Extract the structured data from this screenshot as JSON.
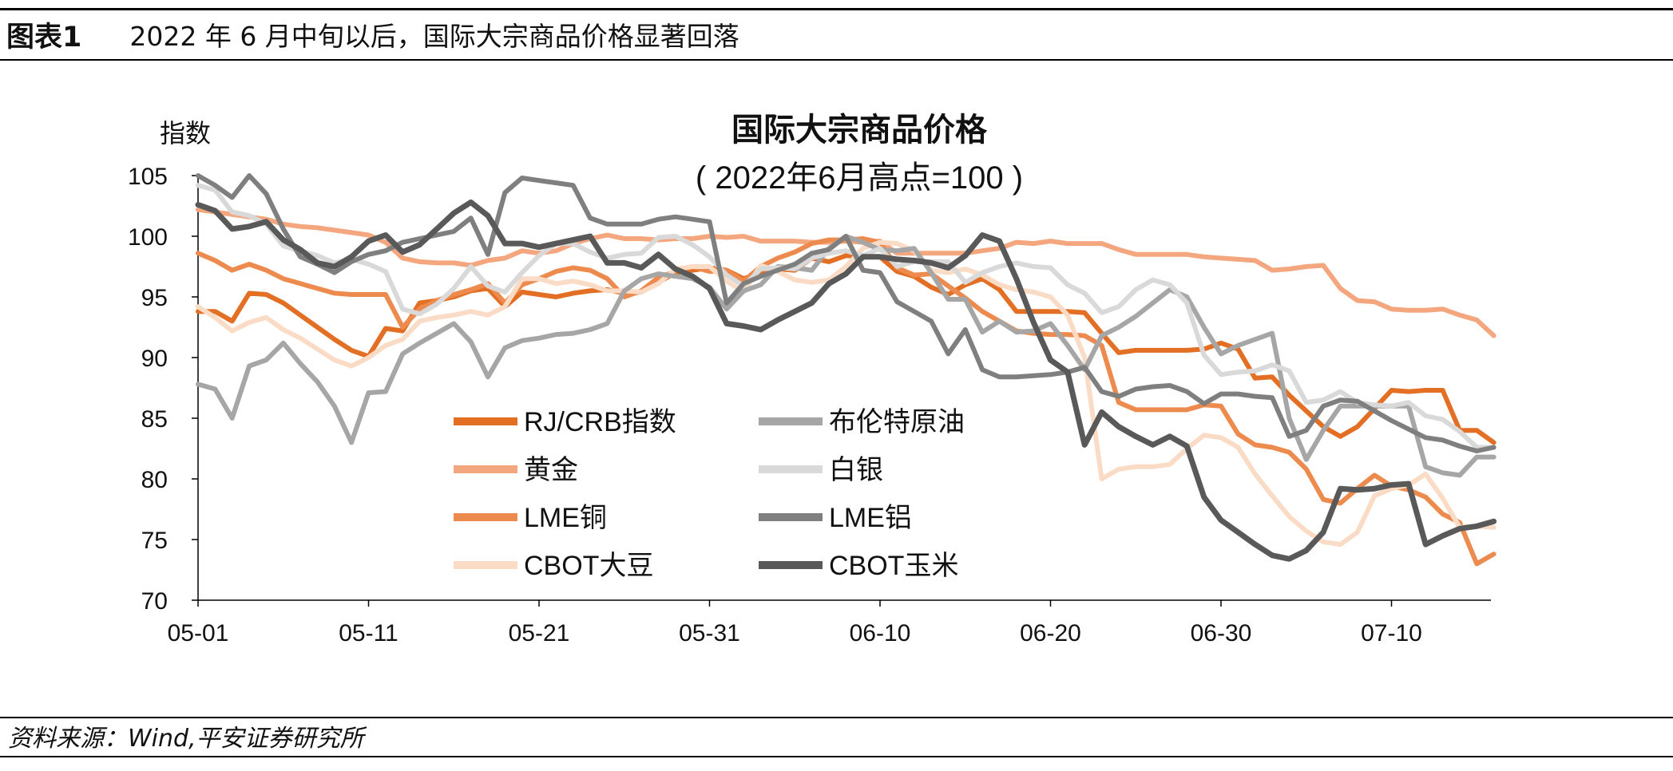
{
  "header": {
    "label": "图表1",
    "title": "2022 年 6 月中旬以后，国际大宗商品价格显著回落"
  },
  "footer": {
    "source": "资料来源：Wind,平安证券研究所"
  },
  "chart_data": {
    "type": "line",
    "title": "国际大宗商品价格",
    "subtitle": "( 2022年6月高点=100 )",
    "ylabel": "指数",
    "xlabel": "",
    "ylim": [
      70,
      105
    ],
    "yticks": [
      70,
      75,
      80,
      85,
      90,
      95,
      100,
      105
    ],
    "x_tick_labels": [
      "05-01",
      "05-11",
      "05-21",
      "05-31",
      "06-10",
      "06-20",
      "06-30",
      "07-10"
    ],
    "x": [
      0,
      1,
      2,
      3,
      4,
      5,
      6,
      7,
      8,
      9,
      10,
      11,
      12,
      13,
      14,
      15,
      16,
      17,
      18,
      19,
      20,
      21,
      22,
      23,
      24,
      25,
      26,
      27,
      28,
      29,
      30,
      31,
      32,
      33,
      34,
      35,
      36,
      37,
      38,
      39,
      40,
      41,
      42,
      43,
      44,
      45,
      46,
      47,
      48,
      49,
      50,
      51,
      52,
      53,
      54,
      55,
      56,
      57,
      58,
      59,
      60,
      61,
      62,
      63,
      64,
      65,
      66,
      67,
      68,
      69,
      70,
      71,
      72,
      73,
      74,
      75,
      76
    ],
    "grid": false,
    "legend_position": "bottom-center inside",
    "series": [
      {
        "name": "RJ/CRB指数",
        "color": "#E36F25",
        "width": 6,
        "values": [
          93.8,
          93.8,
          93.0,
          95.3,
          95.2,
          94.5,
          93.5,
          92.5,
          91.5,
          90.6,
          90.1,
          92.4,
          92.2,
          94.5,
          94.7,
          95.0,
          95.5,
          95.7,
          94.2,
          95.4,
          95.2,
          95.0,
          95.3,
          95.5,
          95.6,
          95.3,
          95.4,
          96.2,
          97.0,
          97.2,
          97.4,
          97.2,
          96.5,
          97.0,
          97.3,
          97.2,
          98.2,
          97.9,
          98.4,
          98.3,
          98.3,
          97.1,
          96.7,
          95.8,
          95.2,
          96.0,
          96.5,
          95.6,
          93.8,
          93.8,
          93.8,
          93.8,
          93.7,
          92.0,
          90.4,
          90.6,
          90.6,
          90.6,
          90.6,
          90.7,
          91.2,
          90.7,
          88.3,
          88.4,
          86.9,
          85.6,
          84.3,
          83.5,
          84.3,
          85.8,
          87.3,
          87.2,
          87.3,
          87.3,
          84.0,
          84.0,
          83.0
        ]
      },
      {
        "name": "黄金",
        "color": "#F4A77F",
        "width": 6,
        "values": [
          102.2,
          102.0,
          101.8,
          101.6,
          101.4,
          101.0,
          100.8,
          100.7,
          100.5,
          100.3,
          100.1,
          99.5,
          98.2,
          97.9,
          97.8,
          97.8,
          97.6,
          98.0,
          98.2,
          98.8,
          98.6,
          98.8,
          99.4,
          99.8,
          100.1,
          99.8,
          99.8,
          99.7,
          99.8,
          99.8,
          100.0,
          99.9,
          100.0,
          99.6,
          99.6,
          99.6,
          99.5,
          99.5,
          99.6,
          99.5,
          99.6,
          98.6,
          98.6,
          98.6,
          98.6,
          98.6,
          98.8,
          99.0,
          99.5,
          99.4,
          99.6,
          99.4,
          99.4,
          99.4,
          98.9,
          98.5,
          98.5,
          98.5,
          98.5,
          98.3,
          98.2,
          98.1,
          98.0,
          97.2,
          97.3,
          97.5,
          97.6,
          95.7,
          94.7,
          94.6,
          94.0,
          93.9,
          93.9,
          94.0,
          93.5,
          93.1,
          91.8
        ]
      },
      {
        "name": "LME铜",
        "color": "#ED8B4F",
        "width": 6,
        "values": [
          98.6,
          98.0,
          97.2,
          97.7,
          97.2,
          96.5,
          96.1,
          95.7,
          95.3,
          95.2,
          95.2,
          95.2,
          92.5,
          94.0,
          94.7,
          95.2,
          95.6,
          96.1,
          94.5,
          96.0,
          96.5,
          97.1,
          97.4,
          97.2,
          96.5,
          95.0,
          95.5,
          96.6,
          97.1,
          97.5,
          97.1,
          97.2,
          96.3,
          97.5,
          98.2,
          98.7,
          99.4,
          99.7,
          99.7,
          99.8,
          99.5,
          97.4,
          96.8,
          96.9,
          95.9,
          94.9,
          93.8,
          93.0,
          92.2,
          92.0,
          91.9,
          91.9,
          91.8,
          91.0,
          86.3,
          85.7,
          85.7,
          85.7,
          85.7,
          86.1,
          86.0,
          83.7,
          82.8,
          82.6,
          82.2,
          80.8,
          78.3,
          78.0,
          79.2,
          80.3,
          79.4,
          79.1,
          78.5,
          77.1,
          76.4,
          73.0,
          73.8
        ]
      },
      {
        "name": "CBOT大豆",
        "color": "#FADCC6",
        "width": 6,
        "values": [
          94.2,
          93.3,
          92.2,
          92.9,
          93.3,
          92.3,
          91.6,
          90.7,
          89.8,
          89.3,
          90.0,
          91.0,
          91.5,
          93.0,
          93.3,
          93.5,
          93.8,
          93.5,
          94.2,
          96.5,
          96.5,
          96.1,
          96.3,
          96.0,
          95.5,
          95.5,
          95.4,
          96.1,
          97.3,
          97.5,
          97.5,
          96.3,
          95.4,
          97.6,
          97.1,
          96.4,
          96.2,
          96.4,
          97.5,
          99.0,
          99.5,
          99.4,
          98.8,
          97.2,
          97.0,
          97.3,
          96.8,
          96.0,
          95.6,
          95.4,
          95.0,
          93.5,
          90.0,
          80.0,
          80.8,
          81.0,
          81.0,
          81.2,
          82.5,
          83.6,
          83.4,
          82.6,
          80.4,
          78.6,
          76.9,
          75.7,
          74.8,
          74.6,
          75.6,
          78.6,
          79.2,
          79.5,
          80.4,
          78.4,
          76.0,
          76.1,
          76.0
        ]
      },
      {
        "name": "布伦特原油",
        "color": "#A6A6A6",
        "width": 6,
        "values": [
          87.8,
          87.4,
          85.0,
          89.3,
          89.8,
          91.2,
          89.5,
          88.0,
          86.0,
          83.0,
          87.1,
          87.2,
          90.3,
          91.2,
          92.0,
          92.8,
          91.3,
          88.4,
          90.8,
          91.4,
          91.6,
          91.9,
          92.0,
          92.3,
          92.8,
          95.5,
          96.5,
          96.9,
          96.7,
          96.5,
          95.8,
          94.0,
          95.5,
          96.0,
          97.5,
          97.4,
          97.2,
          99.0,
          100.0,
          99.5,
          98.9,
          98.8,
          99.0,
          97.0,
          94.8,
          94.8,
          92.1,
          93.0,
          92.1,
          92.2,
          92.8,
          91.0,
          89.0,
          91.8,
          92.5,
          93.4,
          94.5,
          95.6,
          95.0,
          92.5,
          90.3,
          91.0,
          91.5,
          92.0,
          85.0,
          81.6,
          84.0,
          86.0,
          86.0,
          86.0,
          86.0,
          86.0,
          81.0,
          80.5,
          80.3,
          81.8,
          81.8
        ]
      },
      {
        "name": "白银",
        "color": "#D9D9D9",
        "width": 6,
        "values": [
          104.2,
          103.8,
          102.0,
          101.7,
          101.0,
          99.2,
          98.8,
          98.4,
          97.8,
          98.1,
          97.7,
          97.1,
          94.0,
          93.6,
          94.4,
          95.7,
          97.5,
          95.9,
          95.4,
          97.0,
          98.4,
          99.4,
          99.4,
          98.7,
          98.2,
          98.5,
          98.6,
          99.9,
          100.0,
          99.3,
          98.3,
          96.8,
          95.9,
          97.3,
          97.4,
          97.3,
          98.2,
          98.6,
          98.8,
          98.4,
          99.0,
          97.5,
          97.9,
          97.9,
          97.9,
          96.2,
          97.0,
          97.5,
          97.8,
          97.5,
          97.4,
          96.0,
          95.3,
          93.7,
          94.2,
          95.6,
          96.4,
          96.0,
          94.5,
          90.2,
          88.6,
          88.8,
          88.9,
          89.4,
          88.9,
          86.3,
          86.5,
          87.2,
          86.3,
          86.1,
          86.0,
          86.3,
          85.2,
          84.9,
          83.9,
          82.6,
          82.6
        ]
      },
      {
        "name": "LME铝",
        "color": "#7F7F7F",
        "width": 6,
        "values": [
          105.0,
          104.2,
          103.2,
          105.0,
          103.5,
          100.6,
          98.3,
          97.7,
          97.0,
          97.9,
          98.5,
          98.8,
          99.5,
          99.8,
          100.1,
          100.4,
          101.5,
          98.5,
          103.6,
          104.8,
          104.6,
          104.4,
          104.2,
          101.5,
          101.0,
          101.0,
          101.0,
          101.4,
          101.6,
          101.4,
          101.2,
          94.5,
          96.1,
          96.7,
          97.2,
          97.7,
          98.6,
          98.9,
          100.0,
          97.2,
          97.0,
          94.6,
          93.8,
          93.0,
          90.3,
          92.3,
          89.0,
          88.4,
          88.4,
          88.5,
          88.6,
          88.8,
          89.2,
          87.2,
          86.8,
          87.4,
          87.6,
          87.7,
          87.2,
          86.2,
          87.0,
          87.0,
          86.8,
          86.7,
          83.5,
          84.0,
          86.0,
          86.5,
          86.4,
          85.6,
          84.8,
          84.1,
          83.4,
          83.2,
          82.7,
          82.3,
          82.6
        ]
      },
      {
        "name": "CBOT玉米",
        "color": "#595959",
        "width": 7,
        "values": [
          102.6,
          102.1,
          100.6,
          100.8,
          101.2,
          99.7,
          98.9,
          97.8,
          97.5,
          98.3,
          99.6,
          100.1,
          98.7,
          99.3,
          100.6,
          101.9,
          102.8,
          101.7,
          99.4,
          99.4,
          99.1,
          99.4,
          99.7,
          100.0,
          97.8,
          97.8,
          97.4,
          98.5,
          97.3,
          96.7,
          95.7,
          92.8,
          92.6,
          92.3,
          93.1,
          93.8,
          94.5,
          96.1,
          96.9,
          98.3,
          98.3,
          98.1,
          98.0,
          97.8,
          97.4,
          98.4,
          100.1,
          99.6,
          96.5,
          92.9,
          89.8,
          88.8,
          82.8,
          85.5,
          84.3,
          83.5,
          82.8,
          83.5,
          82.7,
          78.5,
          76.6,
          75.6,
          74.6,
          73.7,
          73.4,
          74.1,
          75.6,
          79.2,
          79.1,
          79.2,
          79.5,
          79.6,
          74.6,
          75.3,
          75.9,
          76.1,
          76.5
        ]
      }
    ]
  }
}
